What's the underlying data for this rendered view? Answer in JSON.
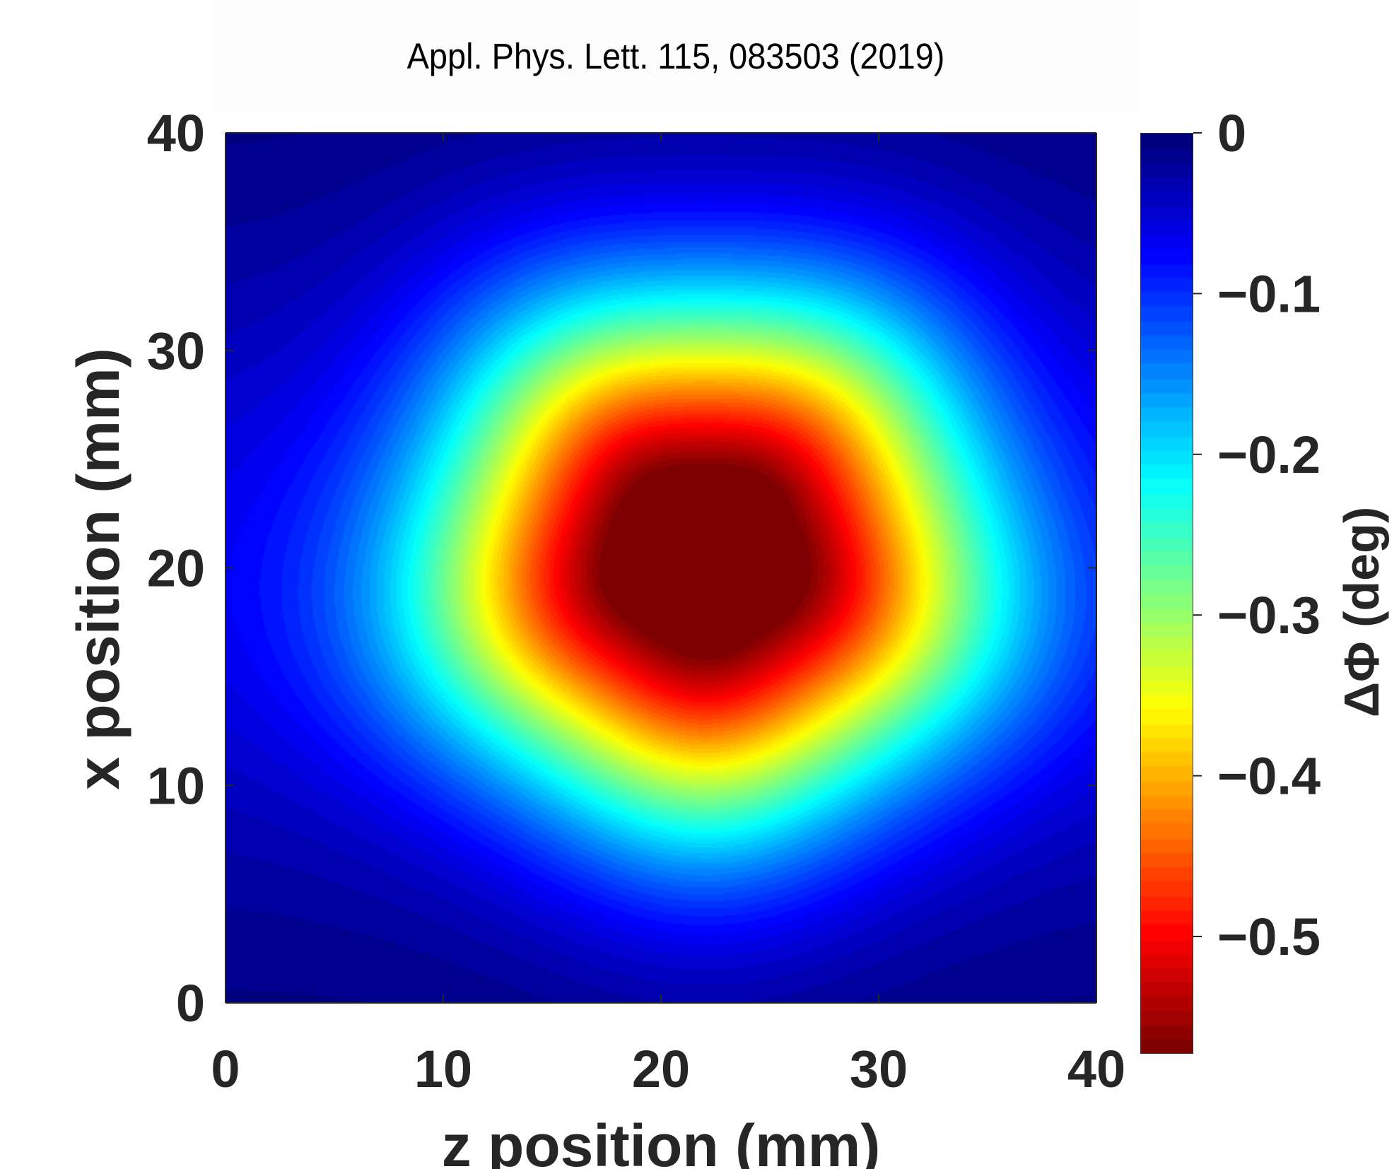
{
  "title": "Appl. Phys. Lett. 115, 083503 (2019)",
  "chart_data": {
    "type": "heatmap",
    "xlabel": "z position (mm)",
    "ylabel": "x position (mm)",
    "colorbar_label": "ΔΦ (deg)",
    "xlim": [
      0,
      40
    ],
    "ylim": [
      0,
      40
    ],
    "clim": [
      -0.573,
      0
    ],
    "xticks": [
      "0",
      "10",
      "20",
      "30",
      "40"
    ],
    "yticks": [
      "0",
      "10",
      "20",
      "30",
      "40"
    ],
    "cticks": [
      {
        "value": 0,
        "label": "0"
      },
      {
        "value": -0.1,
        "label": "-0.1"
      },
      {
        "value": -0.2,
        "label": "-0.2"
      },
      {
        "value": -0.3,
        "label": "-0.3"
      },
      {
        "value": -0.4,
        "label": "-0.4"
      },
      {
        "value": -0.5,
        "label": "-0.5"
      }
    ],
    "colormap": "jet",
    "levels": 64,
    "peak": {
      "z": 22,
      "x": 20.5,
      "value": -0.57
    },
    "profile_width_mm": 12.3,
    "profile_exponent": 2.3
  }
}
